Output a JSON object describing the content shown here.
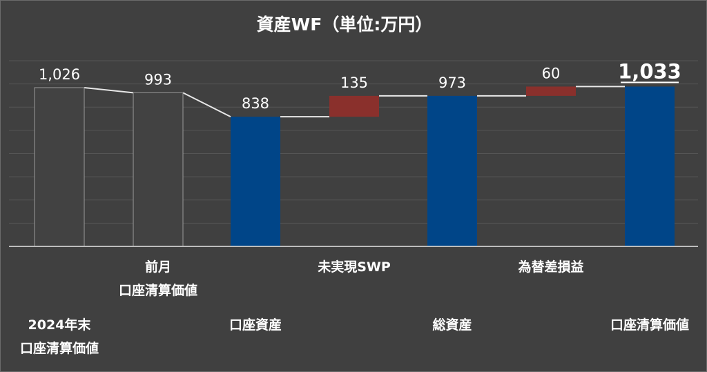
{
  "chart_data": {
    "type": "waterfall",
    "title": "資産WF（単位:万円）",
    "ylim": [
      0,
      1200
    ],
    "bars": [
      {
        "category": [
          "2024年末",
          "口座清算価値"
        ],
        "kind": "total-gray",
        "start": 0,
        "end": 1026,
        "label": "1,026"
      },
      {
        "category": [
          "前月",
          "口座清算価値"
        ],
        "kind": "total-gray",
        "start": 0,
        "end": 993,
        "label": "993"
      },
      {
        "category": [
          "口座資産"
        ],
        "kind": "total-blue",
        "start": 0,
        "end": 838,
        "label": "838"
      },
      {
        "category": [
          "未実現SWP"
        ],
        "kind": "delta",
        "start": 838,
        "end": 973,
        "label": "135"
      },
      {
        "category": [
          "総資産"
        ],
        "kind": "total-blue",
        "start": 0,
        "end": 973,
        "label": "973"
      },
      {
        "category": [
          "為替差損益"
        ],
        "kind": "delta",
        "start": 973,
        "end": 1033,
        "label": "60"
      },
      {
        "category": [
          "口座清算価値"
        ],
        "kind": "total-blue",
        "start": 0,
        "end": 1033,
        "label": "1,033",
        "emphasized": true
      }
    ],
    "colors": {
      "gray": "#424242",
      "gray_stroke": "#9a9a9a",
      "blue": "#004588",
      "red": "#8a302c",
      "connector": "#e8e8e8",
      "grid": "#555555",
      "axis": "#bdbdbd"
    }
  }
}
